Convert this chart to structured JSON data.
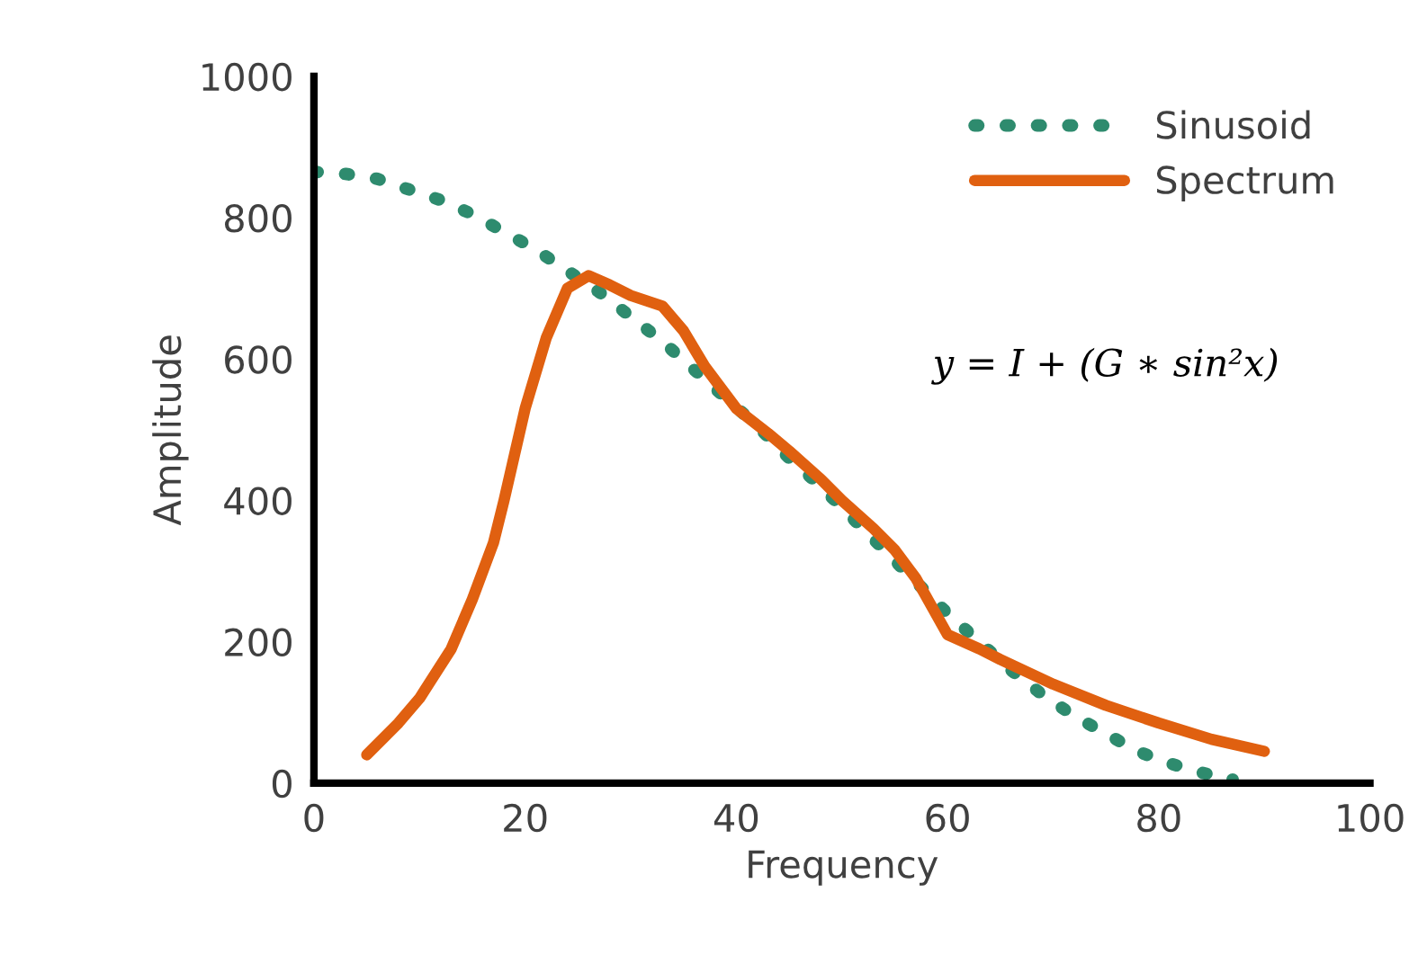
{
  "chart_data": {
    "type": "line",
    "xlabel": "Frequency",
    "ylabel": "Amplitude",
    "xlim": [
      0,
      100
    ],
    "ylim": [
      0,
      1000
    ],
    "xticks": [
      0,
      20,
      40,
      60,
      80,
      100
    ],
    "yticks": [
      0,
      200,
      400,
      600,
      800,
      1000
    ],
    "grid": false,
    "legend": "top right",
    "annotations": [
      "y = I + (G ∗ sin²x)"
    ],
    "series": [
      {
        "name": "Sinusoid",
        "color": "#2e8b6e",
        "line_style": "dotted",
        "x": [
          0,
          3,
          6,
          9,
          12,
          15,
          18,
          21,
          24,
          27,
          30,
          33,
          36,
          39,
          42,
          45,
          48,
          51,
          54,
          57,
          60,
          63,
          66,
          69,
          72,
          75,
          78,
          81,
          84,
          87
        ],
        "values": [
          865,
          862,
          855,
          840,
          825,
          805,
          780,
          755,
          725,
          695,
          660,
          625,
          585,
          545,
          505,
          460,
          420,
          375,
          330,
          285,
          240,
          200,
          160,
          125,
          95,
          70,
          45,
          28,
          15,
          5
        ]
      },
      {
        "name": "Spectrum",
        "color": "#e06010",
        "line_style": "solid",
        "x": [
          5,
          8,
          10,
          13,
          15,
          17,
          18,
          20,
          22,
          24,
          26,
          28,
          30,
          33,
          35,
          37,
          40,
          43,
          45,
          48,
          50,
          53,
          55,
          57,
          60,
          63,
          65,
          70,
          75,
          80,
          85,
          90
        ],
        "values": [
          40,
          85,
          120,
          190,
          260,
          340,
          400,
          530,
          630,
          700,
          718,
          705,
          690,
          675,
          640,
          590,
          530,
          495,
          470,
          430,
          400,
          360,
          330,
          290,
          210,
          190,
          175,
          140,
          110,
          85,
          62,
          45
        ]
      }
    ]
  }
}
